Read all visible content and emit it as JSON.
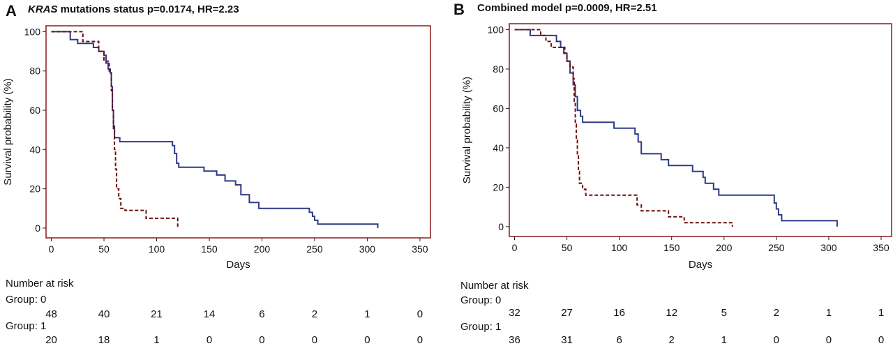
{
  "chart_data": [
    {
      "type": "line",
      "panel_label": "A",
      "title_italic": "KRAS",
      "title_rest": " mutations status p=0.0174, HR=2.23",
      "xlabel": "Days",
      "ylabel": "Survival probability (%)",
      "xlim": [
        -5,
        360
      ],
      "ylim": [
        -5,
        103
      ],
      "xticks": [
        0,
        50,
        100,
        150,
        200,
        250,
        300,
        350
      ],
      "yticks": [
        0,
        20,
        40,
        60,
        80,
        100
      ],
      "colors": {
        "frame": "#8b1a1a",
        "series0": "#2e3a87",
        "series1": "#6b0f0f"
      },
      "series": [
        {
          "group": 0,
          "style": "solid",
          "points": [
            [
              0,
              100
            ],
            [
              18,
              100
            ],
            [
              18,
              96
            ],
            [
              25,
              96
            ],
            [
              25,
              94
            ],
            [
              40,
              94
            ],
            [
              40,
              92
            ],
            [
              45,
              92
            ],
            [
              45,
              90
            ],
            [
              50,
              90
            ],
            [
              50,
              88
            ],
            [
              52,
              88
            ],
            [
              52,
              84
            ],
            [
              54,
              84
            ],
            [
              54,
              81
            ],
            [
              56,
              81
            ],
            [
              56,
              79
            ],
            [
              57,
              79
            ],
            [
              57,
              72
            ],
            [
              58,
              72
            ],
            [
              58,
              60
            ],
            [
              59,
              60
            ],
            [
              59,
              52
            ],
            [
              60,
              52
            ],
            [
              60,
              46
            ],
            [
              65,
              46
            ],
            [
              65,
              44
            ],
            [
              115,
              44
            ],
            [
              115,
              42
            ],
            [
              117,
              42
            ],
            [
              117,
              38
            ],
            [
              119,
              38
            ],
            [
              119,
              33
            ],
            [
              121,
              33
            ],
            [
              121,
              31
            ],
            [
              145,
              31
            ],
            [
              145,
              29
            ],
            [
              157,
              29
            ],
            [
              157,
              27
            ],
            [
              165,
              27
            ],
            [
              165,
              24
            ],
            [
              175,
              24
            ],
            [
              175,
              22
            ],
            [
              180,
              22
            ],
            [
              180,
              17
            ],
            [
              188,
              17
            ],
            [
              188,
              13
            ],
            [
              197,
              13
            ],
            [
              197,
              10
            ],
            [
              209,
              10
            ],
            [
              209,
              10
            ],
            [
              245,
              10
            ],
            [
              245,
              8
            ],
            [
              248,
              8
            ],
            [
              248,
              6
            ],
            [
              250,
              6
            ],
            [
              250,
              4
            ],
            [
              253,
              4
            ],
            [
              253,
              2
            ],
            [
              310,
              2
            ],
            [
              310,
              0
            ]
          ]
        },
        {
          "group": 1,
          "style": "dashed",
          "points": [
            [
              0,
              100
            ],
            [
              30,
              100
            ],
            [
              30,
              95
            ],
            [
              45,
              95
            ],
            [
              45,
              90
            ],
            [
              50,
              90
            ],
            [
              50,
              85
            ],
            [
              55,
              85
            ],
            [
              55,
              80
            ],
            [
              57,
              80
            ],
            [
              57,
              70
            ],
            [
              58,
              70
            ],
            [
              58,
              60
            ],
            [
              59,
              60
            ],
            [
              59,
              50
            ],
            [
              60,
              50
            ],
            [
              60,
              40
            ],
            [
              61,
              40
            ],
            [
              61,
              30
            ],
            [
              62,
              30
            ],
            [
              62,
              20
            ],
            [
              64,
              20
            ],
            [
              64,
              15
            ],
            [
              66,
              15
            ],
            [
              66,
              10
            ],
            [
              70,
              10
            ],
            [
              70,
              9
            ],
            [
              90,
              9
            ],
            [
              90,
              5
            ],
            [
              120,
              5
            ],
            [
              120,
              0
            ]
          ]
        }
      ],
      "risk_table": {
        "heading": "Number at risk",
        "x": [
          0,
          50,
          100,
          150,
          200,
          250,
          300,
          350
        ],
        "groups": [
          {
            "label": "Group: 0",
            "values": [
              "48",
              "40",
              "21",
              "14",
              "6",
              "2",
              "1",
              "0"
            ]
          },
          {
            "label": "Group: 1",
            "values": [
              "20",
              "18",
              "1",
              "0",
              "0",
              "0",
              "0",
              "0"
            ]
          }
        ]
      }
    },
    {
      "type": "line",
      "panel_label": "B",
      "title_italic": "",
      "title_rest": "Combined model p=0.0009, HR=2.51",
      "xlabel": "Days",
      "ylabel": "Survival probability (%)",
      "xlim": [
        -5,
        360
      ],
      "ylim": [
        -5,
        103
      ],
      "xticks": [
        0,
        50,
        100,
        150,
        200,
        250,
        300,
        350
      ],
      "yticks": [
        0,
        20,
        40,
        60,
        80,
        100
      ],
      "colors": {
        "frame": "#8b1a1a",
        "series0": "#2e3a87",
        "series1": "#6b0f0f"
      },
      "series": [
        {
          "group": 0,
          "style": "solid",
          "points": [
            [
              0,
              100
            ],
            [
              15,
              100
            ],
            [
              15,
              97
            ],
            [
              40,
              97
            ],
            [
              40,
              94
            ],
            [
              44,
              94
            ],
            [
              44,
              91
            ],
            [
              47,
              91
            ],
            [
              47,
              88
            ],
            [
              50,
              88
            ],
            [
              50,
              84
            ],
            [
              53,
              84
            ],
            [
              53,
              78
            ],
            [
              56,
              78
            ],
            [
              56,
              72
            ],
            [
              58,
              72
            ],
            [
              58,
              66
            ],
            [
              60,
              66
            ],
            [
              60,
              59
            ],
            [
              63,
              59
            ],
            [
              63,
              56
            ],
            [
              65,
              56
            ],
            [
              65,
              53
            ],
            [
              95,
              53
            ],
            [
              95,
              50
            ],
            [
              115,
              50
            ],
            [
              115,
              47
            ],
            [
              118,
              47
            ],
            [
              118,
              43
            ],
            [
              121,
              43
            ],
            [
              121,
              37
            ],
            [
              140,
              37
            ],
            [
              140,
              34
            ],
            [
              147,
              34
            ],
            [
              147,
              31
            ],
            [
              170,
              31
            ],
            [
              170,
              28
            ],
            [
              180,
              28
            ],
            [
              180,
              25
            ],
            [
              182,
              25
            ],
            [
              182,
              22
            ],
            [
              190,
              22
            ],
            [
              190,
              19
            ],
            [
              195,
              19
            ],
            [
              195,
              16
            ],
            [
              248,
              16
            ],
            [
              248,
              12
            ],
            [
              250,
              12
            ],
            [
              250,
              9
            ],
            [
              252,
              9
            ],
            [
              252,
              6
            ],
            [
              255,
              6
            ],
            [
              255,
              3
            ],
            [
              308,
              3
            ],
            [
              308,
              0
            ]
          ]
        },
        {
          "group": 1,
          "style": "dashed",
          "points": [
            [
              0,
              100
            ],
            [
              25,
              100
            ],
            [
              25,
              97
            ],
            [
              30,
              97
            ],
            [
              30,
              94
            ],
            [
              35,
              94
            ],
            [
              35,
              91
            ],
            [
              48,
              91
            ],
            [
              48,
              88
            ],
            [
              50,
              88
            ],
            [
              50,
              84
            ],
            [
              53,
              84
            ],
            [
              53,
              81
            ],
            [
              56,
              81
            ],
            [
              56,
              75
            ],
            [
              57,
              75
            ],
            [
              57,
              63
            ],
            [
              58,
              63
            ],
            [
              58,
              52
            ],
            [
              59,
              52
            ],
            [
              59,
              44
            ],
            [
              60,
              44
            ],
            [
              60,
              36
            ],
            [
              61,
              36
            ],
            [
              61,
              28
            ],
            [
              62,
              28
            ],
            [
              62,
              22
            ],
            [
              65,
              22
            ],
            [
              65,
              19
            ],
            [
              68,
              19
            ],
            [
              68,
              16
            ],
            [
              117,
              16
            ],
            [
              117,
              11
            ],
            [
              121,
              11
            ],
            [
              121,
              8
            ],
            [
              147,
              8
            ],
            [
              147,
              5
            ],
            [
              162,
              5
            ],
            [
              162,
              2
            ],
            [
              208,
              2
            ],
            [
              208,
              0
            ]
          ]
        }
      ],
      "risk_table": {
        "heading": "Number at risk",
        "x": [
          0,
          50,
          100,
          150,
          200,
          250,
          300,
          350
        ],
        "groups": [
          {
            "label": "Group: 0",
            "values": [
              "32",
              "27",
              "16",
              "12",
              "5",
              "2",
              "1",
              "1"
            ]
          },
          {
            "label": "Group: 1",
            "values": [
              "36",
              "31",
              "6",
              "2",
              "1",
              "0",
              "0",
              "0"
            ]
          }
        ]
      }
    }
  ]
}
